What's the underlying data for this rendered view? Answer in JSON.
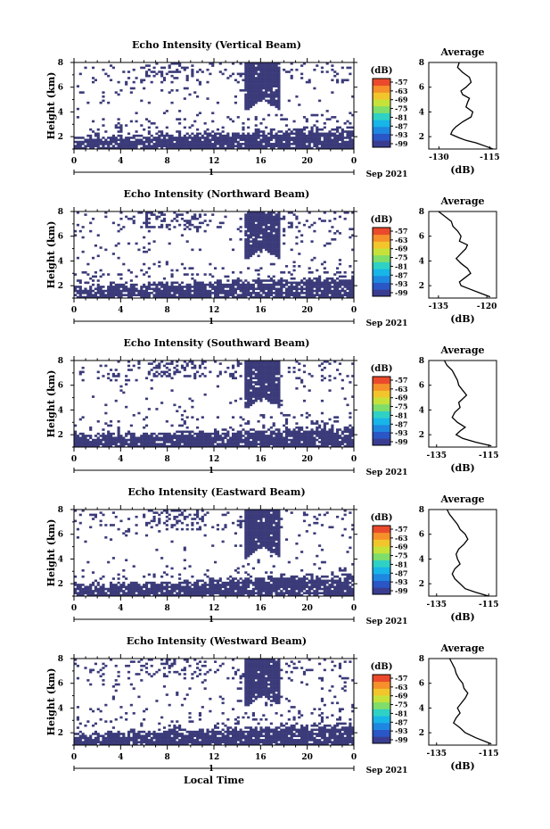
{
  "colors": {
    "data": "#3b3b7a",
    "scale": [
      "#3a3d8f",
      "#2a56c6",
      "#1e87e0",
      "#18b5e8",
      "#2fd1c5",
      "#7fdd6a",
      "#c6e23a",
      "#f1c52b",
      "#f6902a",
      "#ea4a2b"
    ]
  },
  "figure": {
    "xlabel": "Local Time",
    "date_text": "Sep 2021",
    "day_label": "1",
    "x_ticks": [
      "0",
      "4",
      "8",
      "12",
      "16",
      "20",
      "0"
    ],
    "y_label": "Height (km)",
    "y_ticks": [
      "2",
      "4",
      "6",
      "8"
    ],
    "colorbar_unit": "(dB)",
    "colorbar_ticks": [
      "-57",
      "-63",
      "-69",
      "-75",
      "-81",
      "-87",
      "-93",
      "-99"
    ],
    "profile_title": "Average",
    "profile_xlabel": "(dB)"
  },
  "chart_data": [
    {
      "type": "heatmap",
      "title": "Echo Intensity (Vertical Beam)",
      "xlabel": "",
      "ylabel": "Height (km)",
      "ylim": [
        1,
        8
      ],
      "xlim": [
        0,
        24
      ],
      "colorbar": {
        "label": "(dB)",
        "range": [
          -99,
          -57
        ]
      },
      "profile": {
        "type": "line",
        "title": "Average",
        "xlabel": "(dB)",
        "xticks": [
          "-130",
          "-115"
        ],
        "xlim": [
          -133,
          -113
        ],
        "x": [
          -124,
          -124.5,
          -123,
          -121,
          -120.5,
          -122,
          -123.5,
          -123,
          -121,
          -121.5,
          -122,
          -120,
          -120.5,
          -123,
          -125,
          -126,
          -126.5,
          -124,
          -122,
          -119,
          -116,
          -114
        ],
        "y": [
          8.0,
          7.6,
          7.2,
          6.8,
          6.4,
          6.0,
          5.7,
          5.4,
          5.1,
          4.8,
          4.4,
          4.0,
          3.6,
          3.2,
          2.8,
          2.5,
          2.2,
          1.9,
          1.7,
          1.5,
          1.2,
          1.0
        ]
      }
    },
    {
      "type": "heatmap",
      "title": "Echo Intensity (Northward Beam)",
      "xlabel": "",
      "ylabel": "Height (km)",
      "ylim": [
        1,
        8
      ],
      "xlim": [
        0,
        24
      ],
      "colorbar": {
        "label": "(dB)",
        "range": [
          -99,
          -57
        ]
      },
      "profile": {
        "type": "line",
        "title": "Average",
        "xlabel": "(dB)",
        "xticks": [
          "-135",
          "-120"
        ],
        "xlim": [
          -138,
          -117
        ],
        "x": [
          -135,
          -133,
          -131,
          -130.5,
          -129,
          -128,
          -128.5,
          -126,
          -126.5,
          -128,
          -129.5,
          -128,
          -126,
          -125,
          -127,
          -128.5,
          -128,
          -125,
          -122,
          -119
        ],
        "y": [
          8.0,
          7.6,
          7.2,
          6.8,
          6.4,
          6.0,
          5.6,
          5.3,
          5.0,
          4.6,
          4.2,
          3.8,
          3.4,
          3.0,
          2.6,
          2.3,
          2.0,
          1.7,
          1.4,
          1.1
        ]
      }
    },
    {
      "type": "heatmap",
      "title": "Echo Intensity (Southward Beam)",
      "xlabel": "",
      "ylabel": "Height (km)",
      "ylim": [
        1,
        8
      ],
      "xlim": [
        0,
        24
      ],
      "colorbar": {
        "label": "(dB)",
        "range": [
          -99,
          -57
        ]
      },
      "profile": {
        "type": "line",
        "title": "Average",
        "xlabel": "(dB)",
        "xticks": [
          "-135",
          "-115"
        ],
        "xlim": [
          -138,
          -112
        ],
        "x": [
          -132,
          -131,
          -129,
          -128,
          -127,
          -126.5,
          -125,
          -123.5,
          -125,
          -126.5,
          -126,
          -128,
          -129,
          -127,
          -124,
          -126,
          -127.5,
          -125,
          -120,
          -114
        ],
        "y": [
          8.0,
          7.6,
          7.2,
          6.8,
          6.4,
          6.0,
          5.6,
          5.2,
          4.9,
          4.6,
          4.2,
          3.8,
          3.4,
          3.0,
          2.6,
          2.3,
          2.0,
          1.7,
          1.4,
          1.1
        ]
      }
    },
    {
      "type": "heatmap",
      "title": "Echo Intensity (Eastward Beam)",
      "xlabel": "",
      "ylabel": "Height (km)",
      "ylim": [
        1,
        8
      ],
      "xlim": [
        0,
        24
      ],
      "colorbar": {
        "label": "(dB)",
        "range": [
          -99,
          -57
        ]
      },
      "profile": {
        "type": "line",
        "title": "Average",
        "xlabel": "(dB)",
        "xticks": [
          "-135",
          "-115"
        ],
        "xlim": [
          -138,
          -112
        ],
        "x": [
          -131,
          -130,
          -128.5,
          -127,
          -126,
          -124,
          -123,
          -124.5,
          -126.5,
          -127.5,
          -127,
          -126,
          -128,
          -129,
          -128,
          -126,
          -124,
          -120,
          -115
        ],
        "y": [
          8.0,
          7.6,
          7.2,
          6.8,
          6.4,
          6.0,
          5.6,
          5.2,
          4.8,
          4.4,
          4.0,
          3.6,
          3.2,
          2.8,
          2.4,
          2.0,
          1.6,
          1.3,
          1.0
        ]
      }
    },
    {
      "type": "heatmap",
      "title": "Echo Intensity (Westward Beam)",
      "xlabel": "Local Time",
      "ylabel": "Height (km)",
      "ylim": [
        1,
        8
      ],
      "xlim": [
        0,
        24
      ],
      "colorbar": {
        "label": "(dB)",
        "range": [
          -99,
          -57
        ]
      },
      "profile": {
        "type": "line",
        "title": "Average",
        "xlabel": "(dB)",
        "xticks": [
          "-135",
          "-115"
        ],
        "xlim": [
          -138,
          -112
        ],
        "x": [
          -130,
          -129,
          -128,
          -127.5,
          -126.5,
          -125,
          -124.5,
          -123,
          -124,
          -125.5,
          -127,
          -126,
          -127.5,
          -128.5,
          -126,
          -124,
          -120,
          -114
        ],
        "y": [
          8.0,
          7.6,
          7.2,
          6.8,
          6.4,
          6.0,
          5.6,
          5.2,
          4.8,
          4.4,
          4.0,
          3.6,
          3.2,
          2.8,
          2.4,
          2.0,
          1.6,
          1.1
        ]
      }
    }
  ]
}
